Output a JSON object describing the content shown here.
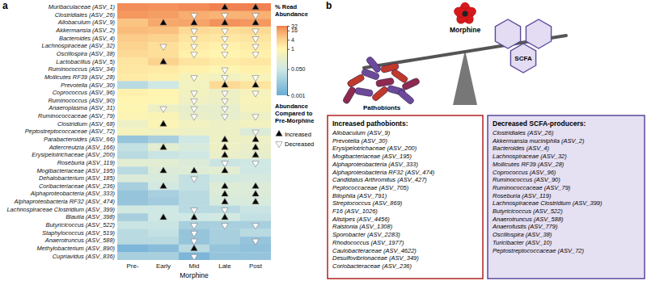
{
  "chart_data": {
    "type": "heatmap",
    "panel_label": "a",
    "rows": [
      "Muribaculaceae (ASV_1)",
      "Clostridiales (ASV_26)",
      "Allobaculum (ASV_9)",
      "Akkermansia (ASV_2)",
      "Bacteroides (ASV_4)",
      "Lachnospiraceae (ASV_32)",
      "Oscillospira (ASV_38)",
      "Lactobacillus (ASV_5)",
      "Ruminococcus (ASV_34)",
      "Mollicutes RF39 (ASV_28)",
      "Prevotella (ASV_30)",
      "Coprococcus (ASV_96)",
      "Ruminococcus (ASV_90)",
      "Anaeroplasma (ASV_31)",
      "Ruminococcaceae (ASV_79)",
      "Clostridium (ASV_68)",
      "Peptostreptococcaceae (ASV_72)",
      "Parabacteroides (ASV_66)",
      "Adlercreutzia (ASV_166)",
      "Erysipelotrichaceae (ASV_200)",
      "Roseburia (ASV_119)",
      "Mogibacteriaceae (ASV_195)",
      "Dehalobacterium (ASV_185)",
      "Coribacteriaceae (ASV_236)",
      "Alphaproteobacteria (ASV_333)",
      "Alphaproteobacteria RF32 (ASV_474)",
      "Lachnospiraceae Clostridium (ASV_399)",
      "Blautia (ASV_398)",
      "Butyricicoccus (ASV_522)",
      "Staphylococcus (ASV_519)",
      "Anaerotruncus (ASV_588)",
      "Methylobacterium (ASV_890)",
      "Cupriavidus (ASV_836)"
    ],
    "columns": [
      "Pre-",
      "Early",
      "Mid",
      "Late",
      "Post"
    ],
    "x_label": "Morphine",
    "log": true,
    "values": [
      [
        24,
        22,
        25,
        30,
        30
      ],
      [
        20,
        18,
        12,
        10,
        11
      ],
      [
        6,
        14,
        16,
        22,
        20
      ],
      [
        8,
        7,
        3,
        2.5,
        3
      ],
      [
        5,
        4,
        2,
        1.8,
        2
      ],
      [
        4,
        2.5,
        1.5,
        1.2,
        1.5
      ],
      [
        3,
        2.5,
        1.2,
        1,
        1.2
      ],
      [
        2,
        4,
        2,
        1.5,
        1.8
      ],
      [
        1.8,
        1.6,
        1.2,
        0.9,
        1.2
      ],
      [
        1.5,
        1.3,
        0.5,
        0.4,
        0.6
      ],
      [
        0.02,
        0.05,
        0.4,
        3,
        2
      ],
      [
        1.2,
        1,
        0.4,
        0.3,
        0.5
      ],
      [
        1,
        0.9,
        0.35,
        0.3,
        0.6
      ],
      [
        0.9,
        0.3,
        0.2,
        0.2,
        0.5
      ],
      [
        0.8,
        0.7,
        0.25,
        0.2,
        0.3
      ],
      [
        0.3,
        0.8,
        0.4,
        0.3,
        0.4
      ],
      [
        0.5,
        0.4,
        0.3,
        0.3,
        0.1
      ],
      [
        0.005,
        0.01,
        0.05,
        0.3,
        0.3
      ],
      [
        0.03,
        0.15,
        0.08,
        0.3,
        0.25
      ],
      [
        0.02,
        0.04,
        0.05,
        0.25,
        0.2
      ],
      [
        0.15,
        0.15,
        0.1,
        0.04,
        0.05
      ],
      [
        0.02,
        0.1,
        0.12,
        0.15,
        0.05
      ],
      [
        0.1,
        0.08,
        0.03,
        0.06,
        0.07
      ],
      [
        0.01,
        0.06,
        0.03,
        0.12,
        0.1
      ],
      [
        0.005,
        0.01,
        0.02,
        0.1,
        0.1
      ],
      [
        0.005,
        0.008,
        0.02,
        0.08,
        0.08
      ],
      [
        0.06,
        0.05,
        0.02,
        0.02,
        0.04
      ],
      [
        0.01,
        0.05,
        0.05,
        0.06,
        0.03
      ],
      [
        0.04,
        0.04,
        0.01,
        0.01,
        0.01
      ],
      [
        0.02,
        0.03,
        0.005,
        0.01,
        0.02
      ],
      [
        0.02,
        0.02,
        0.005,
        0.01,
        0.005
      ],
      [
        0.002,
        0.003,
        0.02,
        0.005,
        0.004
      ],
      [
        0.01,
        0.01,
        0.002,
        0.005,
        0.005
      ]
    ],
    "changes": [
      [
        null,
        null,
        null,
        "Increased",
        "Increased"
      ],
      [
        null,
        null,
        "Decreased",
        "Decreased",
        "Decreased"
      ],
      [
        null,
        "Increased",
        "Increased",
        "Increased",
        "Increased"
      ],
      [
        null,
        null,
        "Decreased",
        "Decreased",
        "Decreased"
      ],
      [
        null,
        null,
        "Decreased",
        "Decreased",
        "Decreased"
      ],
      [
        null,
        "Decreased",
        "Decreased",
        "Decreased",
        "Decreased"
      ],
      [
        null,
        null,
        "Decreased",
        "Decreased",
        "Decreased"
      ],
      [
        null,
        "Increased",
        null,
        null,
        null
      ],
      [
        null,
        null,
        null,
        "Decreased",
        null
      ],
      [
        null,
        null,
        "Decreased",
        "Decreased",
        "Decreased"
      ],
      [
        null,
        null,
        null,
        "Increased",
        "Increased"
      ],
      [
        null,
        null,
        "Decreased",
        "Decreased",
        "Decreased"
      ],
      [
        null,
        null,
        "Decreased",
        "Decreased",
        null
      ],
      [
        null,
        "Decreased",
        "Decreased",
        "Decreased",
        null
      ],
      [
        null,
        null,
        "Decreased",
        "Decreased",
        "Decreased"
      ],
      [
        null,
        "Increased",
        null,
        null,
        null
      ],
      [
        null,
        null,
        null,
        null,
        "Decreased"
      ],
      [
        null,
        null,
        null,
        "Increased",
        "Increased"
      ],
      [
        null,
        "Increased",
        null,
        "Increased",
        "Increased"
      ],
      [
        null,
        null,
        null,
        "Increased",
        "Increased"
      ],
      [
        null,
        null,
        null,
        "Decreased",
        "Decreased"
      ],
      [
        null,
        "Increased",
        "Increased",
        "Increased",
        null
      ],
      [
        null,
        null,
        "Decreased",
        null,
        null
      ],
      [
        null,
        "Increased",
        null,
        "Increased",
        "Increased"
      ],
      [
        null,
        null,
        null,
        "Increased",
        "Increased"
      ],
      [
        null,
        null,
        null,
        "Increased",
        "Increased"
      ],
      [
        null,
        null,
        "Decreased",
        "Decreased",
        null
      ],
      [
        null,
        "Increased",
        "Increased",
        "Increased",
        null
      ],
      [
        null,
        null,
        "Decreased",
        "Decreased",
        "Decreased"
      ],
      [
        null,
        null,
        "Decreased",
        null,
        null
      ],
      [
        null,
        null,
        "Decreased",
        null,
        "Decreased"
      ],
      [
        null,
        null,
        "Increased",
        null,
        null
      ],
      [
        null,
        null,
        "Decreased",
        null,
        null
      ]
    ],
    "colorbar": {
      "title": [
        "% Read",
        "Abundance"
      ],
      "range": [
        0.001,
        32
      ],
      "ticks": [
        32,
        16,
        4,
        1,
        {
          "value": 0.05,
          "label": "0.050"
        },
        0.001
      ]
    },
    "marker_legend": {
      "title": [
        "Abundance",
        "Compared to",
        "Pre-Morphine"
      ],
      "items": [
        {
          "label": "Increased",
          "marker": "triangle-up",
          "color": "#000000"
        },
        {
          "label": "Decreased",
          "marker": "triangle-down",
          "color": "#ffffff"
        }
      ]
    }
  },
  "panel_b": {
    "panel_label": "b",
    "top_label": "Morphine",
    "left_label": "Pathobionts",
    "right_label": "SCFA",
    "increased": {
      "title": "Increased pathobionts:",
      "items": [
        "Allobaculum (ASV_9)",
        "Prevotella (ASV_30)",
        "Erysipelotrichaceae (ASV_200)",
        "Mogibacteriaceae (ASV_195)",
        "Alphaproteobacteria (ASV_333)",
        "Alphaproteobacteria RF32 (ASV_474)",
        "Candidatus Arthromitus (ASV_427)",
        "Peptococcaceae (ASV_705)",
        "Bilophila (ASV_791)",
        "Streptococcus (ASV_869)",
        "F16 (ASV_1026)",
        "Alistipes (ASV_4456)",
        "Ralstonia (ASV_1308)",
        "Sporobacter (ASV_2283)",
        "Rhodococcus (ASV_1977)",
        "Caulobacteraceae (ASV_4622)",
        "Desulfovibrionaceae (ASV_349)",
        "Coriobacteraceae (ASV_236)"
      ]
    },
    "decreased": {
      "title": "Decreased SCFA-producers:",
      "items": [
        "Clostridiales (ASV_26)",
        "Akkermansia muciniphila (ASV_2)",
        "Bacteroides (ASV_4)",
        "Lachnospiraceae (ASV_32)",
        "Mollicutes RF39 (ASV_28)",
        "Coprococcus (ASV_96)",
        "Ruminococcus (ASV_90)",
        "Ruminococcaceae (ASV_79)",
        "Roseburia (ASV_119)",
        "Lachnospiraceae Clostridium (ASV_399)",
        "Butyricicoccus (ASV_522)",
        "Anaerotruncus (ASV_588)",
        "Anaerofustis (ASV_779)",
        "Oscillospira (ASV_38)",
        "Turicibacter (ASV_10)",
        "Peptostreptococcaceae (ASV_72)"
      ]
    }
  }
}
